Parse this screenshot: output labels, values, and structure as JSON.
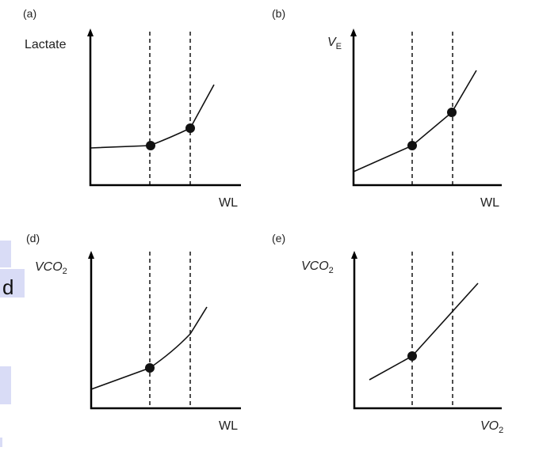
{
  "sidebar": {
    "fragment_text": "d",
    "highlight_color": "#d9dcf6"
  },
  "panels": [
    {
      "id": "a",
      "letter": "(a)",
      "y_label": "Lactate",
      "y_sub": "",
      "x_label": "WL",
      "x_sub": ""
    },
    {
      "id": "b",
      "letter": "(b)",
      "y_label": "V",
      "y_sub": "E",
      "x_label": "WL",
      "x_sub": ""
    },
    {
      "id": "d",
      "letter": "(d)",
      "y_label": "VCO",
      "y_sub": "2",
      "x_label": "WL",
      "x_sub": ""
    },
    {
      "id": "e",
      "letter": "(e)",
      "y_label": "VCO",
      "y_sub": "2",
      "x_label": "VO",
      "x_sub": "2"
    }
  ]
}
